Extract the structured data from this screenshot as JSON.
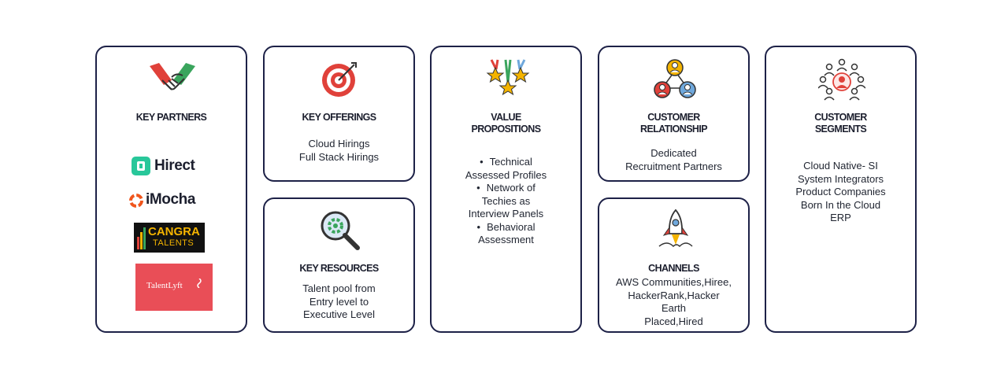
{
  "key_partners": {
    "title": "KEY PARTNERS",
    "logos": [
      "Hirect",
      "iMocha",
      "CANGRA",
      "TALENTS",
      "TalentLyft"
    ]
  },
  "key_offerings": {
    "title": "KEY OFFERINGS",
    "lines": [
      "Cloud Hirings",
      "Full Stack Hirings"
    ]
  },
  "key_resources": {
    "title": "KEY RESOURCES",
    "lines": [
      "Talent pool from",
      "Entry level to",
      "Executive Level"
    ]
  },
  "value_propositions": {
    "title_lines": [
      "VALUE",
      "PROPOSITIONS"
    ],
    "bullets": [
      [
        "Technical",
        "Assessed Profiles"
      ],
      [
        "Network of",
        "Techies as",
        "Interview Panels"
      ],
      [
        "Behavioral",
        "Assessment"
      ]
    ],
    "bullet_char": "•"
  },
  "customer_relationship": {
    "title_lines": [
      "CUSTOMER",
      "RELATIONSHIP"
    ],
    "lines": [
      "Dedicated",
      "Recruitment Partners"
    ]
  },
  "channels": {
    "title": "CHANNELS",
    "lines": [
      "AWS Communities,Hiree,",
      "HackerRank,Hacker",
      "Earth",
      "Placed,Hired"
    ]
  },
  "customer_segments": {
    "title_lines": [
      "CUSTOMER",
      "SEGMENTS"
    ],
    "lines": [
      "Cloud Native- SI",
      "System Integrators",
      "Product Companies",
      "Born In the Cloud",
      "ERP"
    ]
  },
  "icons": [
    "handshake-icon",
    "target-icon",
    "award-stars-icon",
    "customer-network-icon",
    "audience-group-icon",
    "magnifier-gear-icon",
    "rocket-icon"
  ],
  "colors": {
    "border": "#1d2147",
    "accent_red": "#e0413a",
    "accent_green": "#3aa55d",
    "accent_yellow": "#f4b400",
    "accent_blue": "#6fa8dc",
    "hirect_green": "#28c79a",
    "imocha_orange": "#f0551c",
    "talentlyft_red": "#e94e57",
    "cangra_bg": "#111111"
  }
}
